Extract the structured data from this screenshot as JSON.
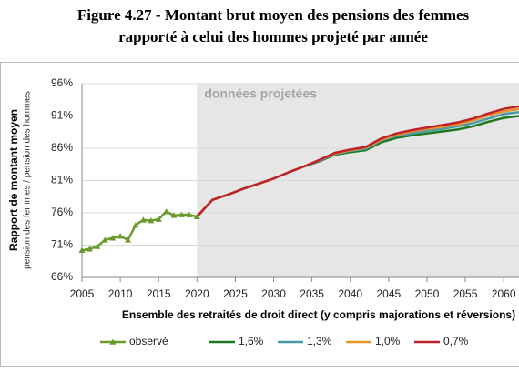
{
  "chart_data": {
    "type": "line",
    "title": [
      "Figure 4.27 - Montant brut moyen des pensions des femmes",
      "rapporté à celui des hommes projeté par année"
    ],
    "y_label": "Rapport de montant moyen",
    "y_sublabel": "pension des femmes / pension des  hommes",
    "x_label": "Ensemble des retraités de droit direct (y compris majorations et réversions)",
    "annotation": "données projetées",
    "shade_from": 2020,
    "x": [
      2005,
      2006,
      2007,
      2008,
      2009,
      2010,
      2011,
      2012,
      2013,
      2014,
      2015,
      2016,
      2017,
      2018,
      2019,
      2020,
      2022,
      2024,
      2026,
      2028,
      2030,
      2032,
      2034,
      2036,
      2038,
      2040,
      2042,
      2044,
      2046,
      2048,
      2050,
      2052,
      2054,
      2056,
      2058,
      2060,
      2062
    ],
    "xlim": [
      2005,
      2062
    ],
    "xticks": [
      2005,
      2010,
      2015,
      2020,
      2025,
      2030,
      2035,
      2040,
      2045,
      2050,
      2055,
      2060
    ],
    "ylim": [
      66,
      96
    ],
    "yticks": [
      {
        "value": 66,
        "label": "66%"
      },
      {
        "value": 71,
        "label": "71%"
      },
      {
        "value": 76,
        "label": "76%"
      },
      {
        "value": 81,
        "label": "81%"
      },
      {
        "value": 86,
        "label": "86%"
      },
      {
        "value": 91,
        "label": "91%"
      },
      {
        "value": 96,
        "label": "96%"
      }
    ],
    "grid": true,
    "series": [
      {
        "name": "observé",
        "color": "#6b9a2c",
        "marker": "triangle",
        "values": [
          70.2,
          70.4,
          70.8,
          71.8,
          72.1,
          72.4,
          71.8,
          74.1,
          74.9,
          74.8,
          75.0,
          76.2,
          75.6,
          75.7,
          75.7,
          75.4,
          null,
          null,
          null,
          null,
          null,
          null,
          null,
          null,
          null,
          null,
          null,
          null,
          null,
          null,
          null,
          null,
          null,
          null,
          null,
          null,
          null
        ]
      },
      {
        "name": "1,6%",
        "color": "#1e7a1e",
        "values": [
          null,
          null,
          null,
          null,
          null,
          null,
          null,
          null,
          null,
          null,
          null,
          null,
          null,
          null,
          null,
          75.4,
          78.0,
          78.8,
          79.7,
          80.5,
          81.3,
          82.3,
          83.2,
          84.0,
          85.0,
          85.4,
          85.7,
          86.9,
          87.6,
          88.0,
          88.3,
          88.6,
          88.9,
          89.4,
          90.1,
          90.7,
          91.0
        ]
      },
      {
        "name": "1,3%",
        "color": "#4a9aaa",
        "values": [
          null,
          null,
          null,
          null,
          null,
          null,
          null,
          null,
          null,
          null,
          null,
          null,
          null,
          null,
          null,
          75.4,
          78.0,
          78.8,
          79.7,
          80.5,
          81.3,
          82.3,
          83.2,
          84.1,
          85.1,
          85.6,
          85.9,
          87.2,
          87.9,
          88.3,
          88.7,
          89.0,
          89.4,
          89.9,
          90.6,
          91.3,
          91.6
        ]
      },
      {
        "name": "1,0%",
        "color": "#e8902a",
        "values": [
          null,
          null,
          null,
          null,
          null,
          null,
          null,
          null,
          null,
          null,
          null,
          null,
          null,
          null,
          null,
          75.4,
          78.0,
          78.8,
          79.7,
          80.5,
          81.3,
          82.3,
          83.2,
          84.2,
          85.2,
          85.7,
          86.1,
          87.3,
          88.1,
          88.6,
          89.0,
          89.3,
          89.7,
          90.3,
          91.1,
          91.7,
          92.1
        ]
      },
      {
        "name": "0,7%",
        "color": "#c0202a",
        "values": [
          null,
          null,
          null,
          null,
          null,
          null,
          null,
          null,
          null,
          null,
          null,
          null,
          null,
          null,
          null,
          75.4,
          78.0,
          78.8,
          79.7,
          80.5,
          81.3,
          82.3,
          83.2,
          84.2,
          85.3,
          85.8,
          86.2,
          87.5,
          88.3,
          88.8,
          89.2,
          89.6,
          90.0,
          90.6,
          91.4,
          92.1,
          92.5
        ]
      }
    ]
  }
}
